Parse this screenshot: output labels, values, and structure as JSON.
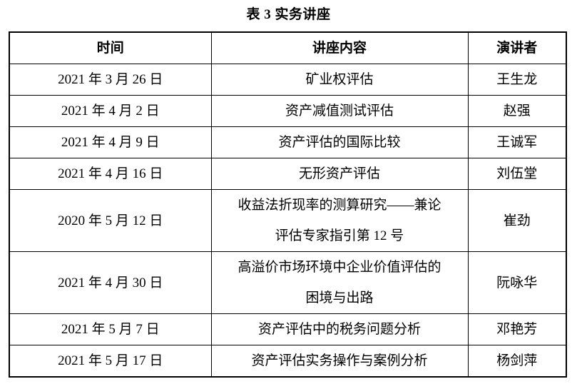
{
  "page": {
    "title": "表 3 实务讲座"
  },
  "table": {
    "headers": {
      "time": "时间",
      "content": "讲座内容",
      "speaker": "演讲者"
    },
    "rows": [
      {
        "time": "2021 年 3 月 26 日",
        "content": "矿业权评估",
        "speaker": "王生龙"
      },
      {
        "time": "2021 年 4 月 2 日",
        "content": "资产减值测试评估",
        "speaker": "赵强"
      },
      {
        "time": "2021 年 4 月 9 日",
        "content": "资产评估的国际比较",
        "speaker": "王诚军"
      },
      {
        "time": "2021 年 4 月 16 日",
        "content": "无形资产评估",
        "speaker": "刘伍堂"
      },
      {
        "time": "2020 年 5 月 12 日",
        "content": "收益法折现率的测算研究——兼论\n评估专家指引第 12 号",
        "speaker": "崔劲"
      },
      {
        "time": "2021 年 4 月 30 日",
        "content": "高溢价市场环境中企业价值评估的\n困境与出路",
        "speaker": "阮咏华"
      },
      {
        "time": "2021 年 5 月 7 日",
        "content": "资产评估中的税务问题分析",
        "speaker": "邓艳芳"
      },
      {
        "time": "2021 年 5 月 17 日",
        "content": "资产评估实务操作与案例分析",
        "speaker": "杨剑萍"
      }
    ]
  }
}
